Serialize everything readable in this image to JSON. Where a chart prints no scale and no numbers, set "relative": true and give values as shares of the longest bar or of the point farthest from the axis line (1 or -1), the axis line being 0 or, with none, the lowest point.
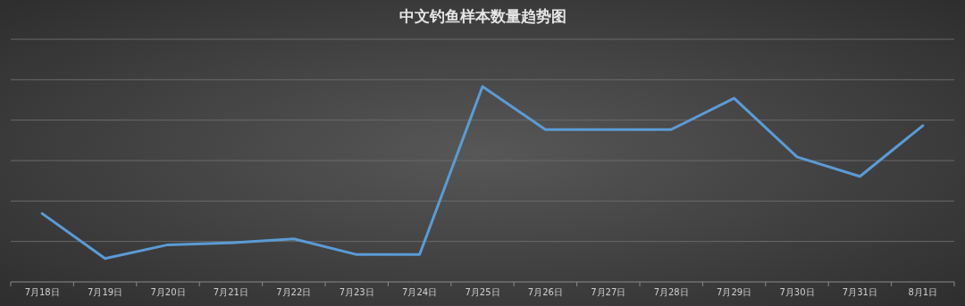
{
  "chart_data": {
    "type": "line",
    "title": "中文钓鱼样本数量趋势图",
    "relative": true,
    "grid": "y",
    "marker": "none",
    "line_style": "solid",
    "categories": [
      "7月18日",
      "7月19日",
      "7月20日",
      "7月21日",
      "7月22日",
      "7月23日",
      "7月24日",
      "7月25日",
      "7月26日",
      "7月27日",
      "7月28日",
      "7月29日",
      "7月30日",
      "7月31日",
      "8月1日"
    ],
    "series": [
      {
        "color": "#5b9bd5",
        "values": [
          0.35,
          0.12,
          0.19,
          0.2,
          0.22,
          0.14,
          0.14,
          1,
          0.78,
          0.78,
          0.78,
          0.94,
          0.64,
          0.54,
          0.8
        ]
      }
    ]
  }
}
